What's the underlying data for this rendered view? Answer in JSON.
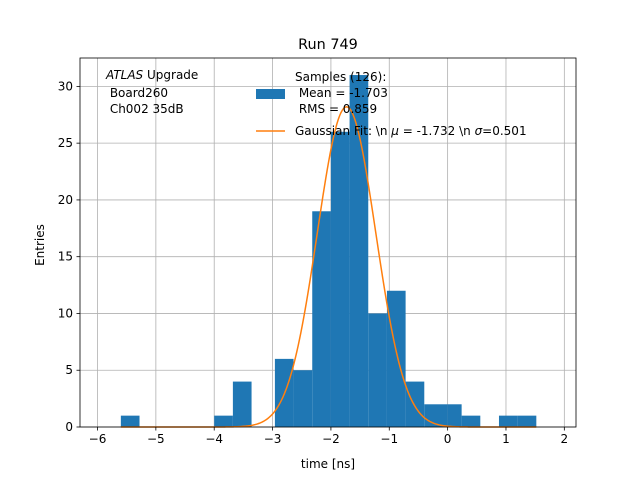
{
  "chart_data": {
    "type": "bar",
    "title": "Run 749",
    "xlabel": "time [ns]",
    "ylabel": "Entries",
    "xlim": [
      -6.3,
      2.2
    ],
    "ylim": [
      0,
      32.5
    ],
    "xticks": [
      -6,
      -5,
      -4,
      -3,
      -2,
      -1,
      0,
      1,
      2
    ],
    "xtick_labels": [
      "−6",
      "−5",
      "−4",
      "−3",
      "−2",
      "−1",
      "0",
      "1",
      "2"
    ],
    "yticks": [
      0,
      5,
      10,
      15,
      20,
      25,
      30
    ],
    "ytick_labels": [
      "0",
      "5",
      "10",
      "15",
      "20",
      "25",
      "30"
    ],
    "grid": true,
    "legend_position": "upper-center",
    "annotation": {
      "italic": "ATLAS",
      "line1_rest": " Upgrade",
      "line2": " Board260",
      "line3": " Ch002 35dB"
    },
    "histogram": {
      "name_lines": [
        "Samples (126):",
        " Mean = -1.703",
        " RMS = 0.859"
      ],
      "color": "#1f77b4",
      "bins": [
        {
          "left": -5.6,
          "right": -5.28,
          "count": 1
        },
        {
          "left": -4.0,
          "right": -3.68,
          "count": 1
        },
        {
          "left": -3.68,
          "right": -3.36,
          "count": 4
        },
        {
          "left": -2.96,
          "right": -2.64,
          "count": 6
        },
        {
          "left": -2.64,
          "right": -2.32,
          "count": 5
        },
        {
          "left": -2.32,
          "right": -2.0,
          "count": 19
        },
        {
          "left": -2.0,
          "right": -1.68,
          "count": 26
        },
        {
          "left": -1.68,
          "right": -1.36,
          "count": 31
        },
        {
          "left": -1.36,
          "right": -1.04,
          "count": 10
        },
        {
          "left": -1.04,
          "right": -0.72,
          "count": 12
        },
        {
          "left": -0.72,
          "right": -0.4,
          "count": 4
        },
        {
          "left": -0.4,
          "right": 0.0,
          "count": 2
        },
        {
          "left": 0.0,
          "right": 0.24,
          "count": 2
        },
        {
          "left": 0.24,
          "right": 0.56,
          "count": 1
        },
        {
          "left": 0.88,
          "right": 1.2,
          "count": 1
        },
        {
          "left": 1.2,
          "right": 1.52,
          "count": 1
        }
      ]
    },
    "fit": {
      "name": "Gaussian Fit: \\n μ = -1.732 \\n σ=0.501",
      "name_parts": [
        "Gaussian Fit: \\n ",
        "μ",
        " = -1.732 \\n ",
        "σ",
        "=0.501"
      ],
      "color": "#ff7f0e",
      "mu": -1.732,
      "sigma": 0.501,
      "amplitude": 28.2,
      "x_range": [
        -5.6,
        1.52
      ]
    }
  }
}
